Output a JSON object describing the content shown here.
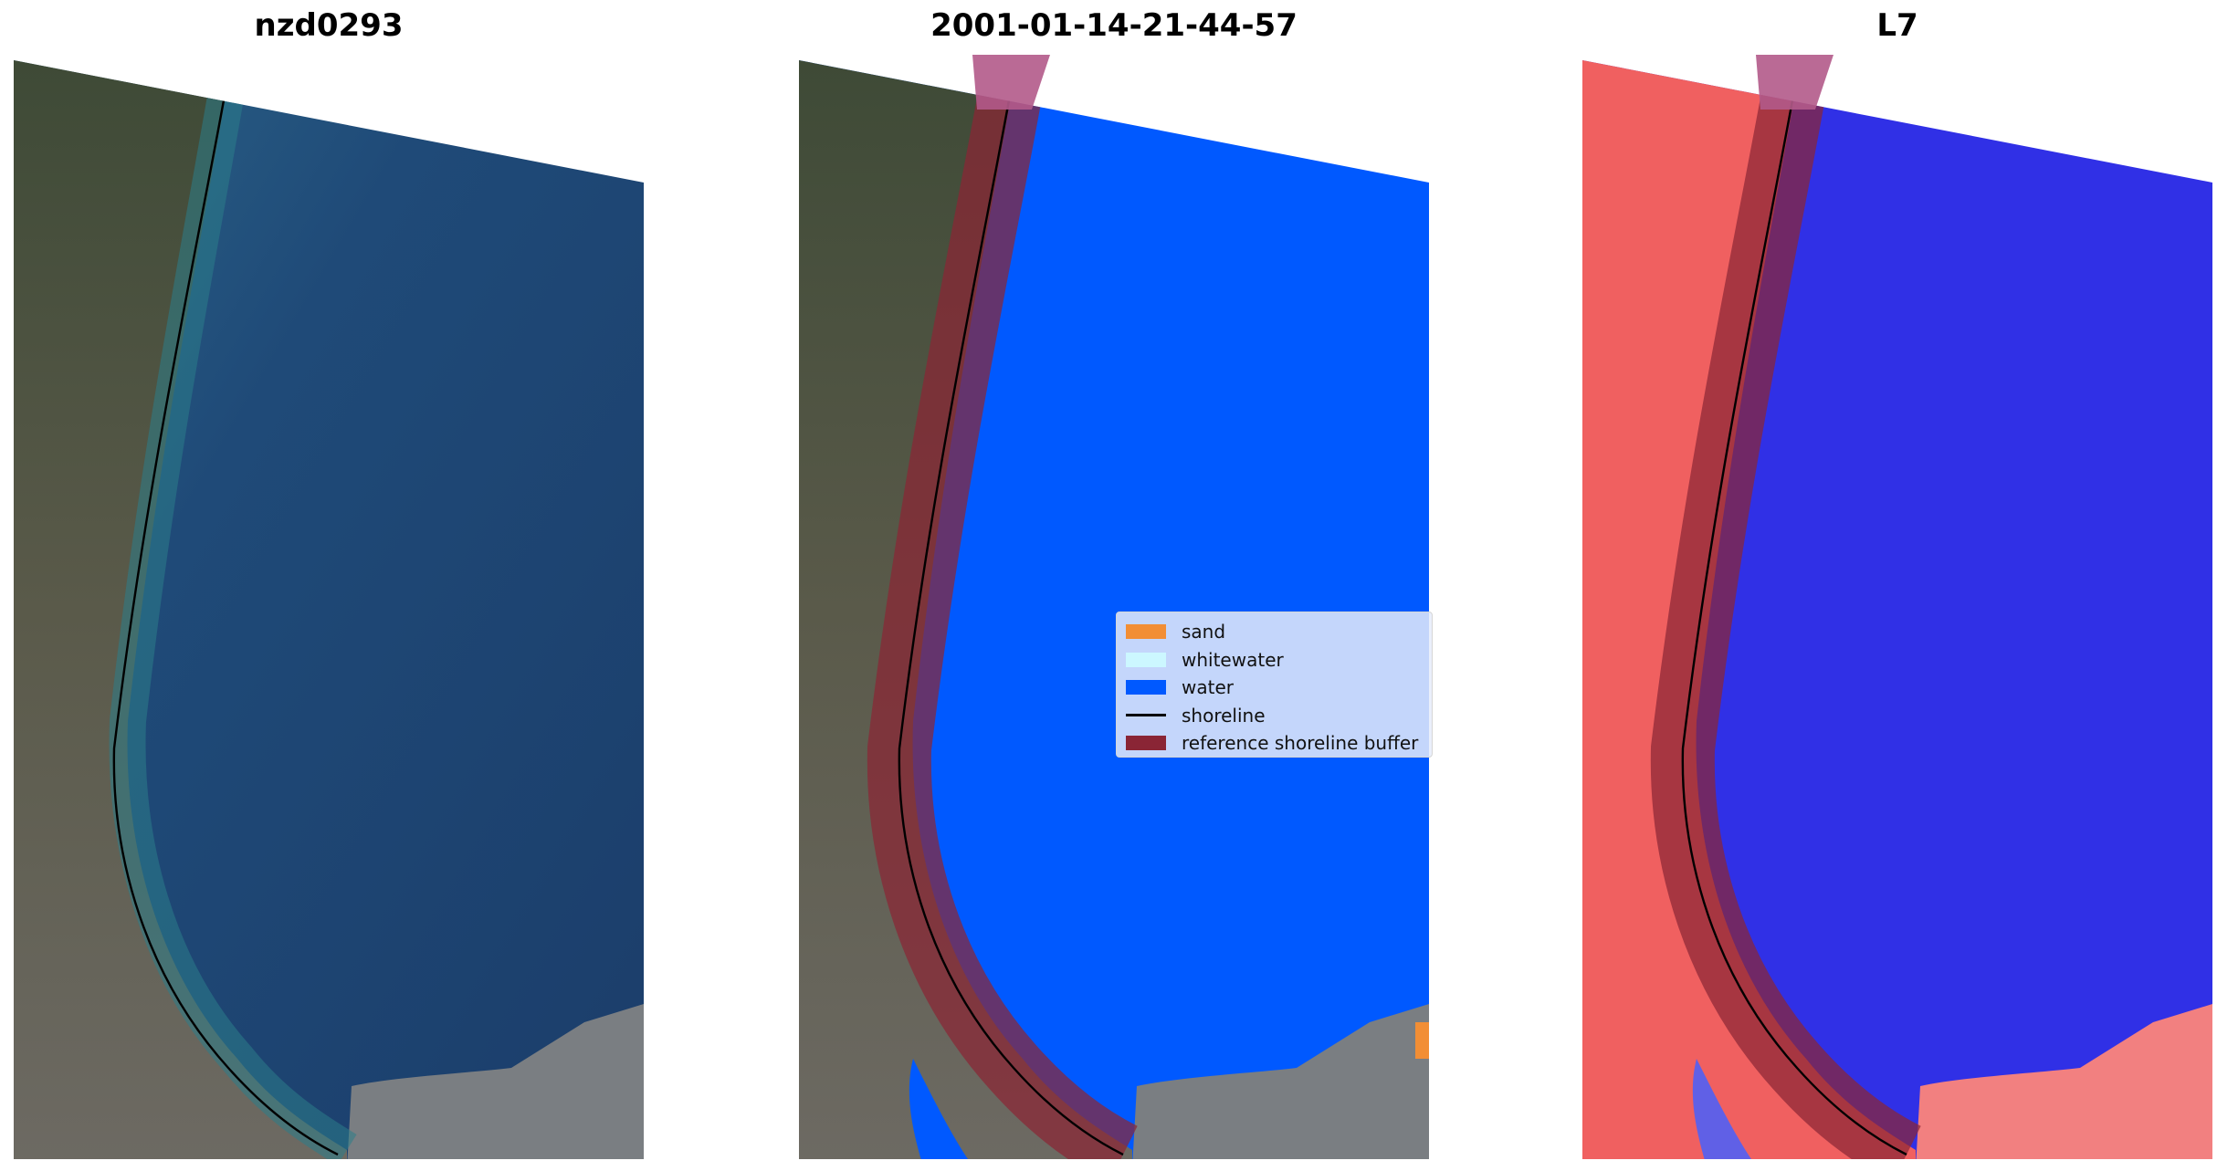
{
  "panels": [
    {
      "title": "nzd0293"
    },
    {
      "title": "2001-01-14-21-44-57"
    },
    {
      "title": "L7"
    }
  ],
  "legend": {
    "items": [
      {
        "label": "sand",
        "kind": "patch",
        "color": "#f28e35"
      },
      {
        "label": "whitewater",
        "kind": "patch",
        "color": "#ccf7ff"
      },
      {
        "label": "water",
        "kind": "patch",
        "color": "#0059ff"
      },
      {
        "label": "shoreline",
        "kind": "line",
        "color": "#000000"
      },
      {
        "label": "reference shoreline buffer",
        "kind": "patch",
        "color": "#8a2535"
      }
    ]
  },
  "colors": {
    "sea_rgb": "#1d4272",
    "land_rgb": "#4f5640",
    "water_class": "#0059ff",
    "buffer": "#8a2535",
    "mndwi_land": "#f06060",
    "mndwi_water": "#3030e6"
  }
}
